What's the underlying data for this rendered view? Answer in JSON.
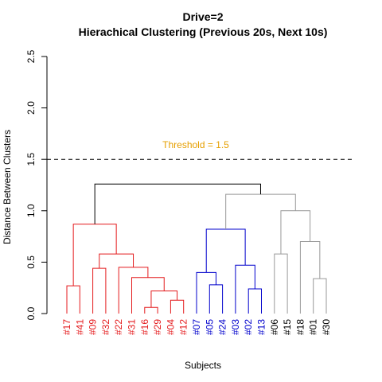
{
  "chart_data": {
    "type": "dendrogram",
    "title": "Drive=2",
    "subtitle": "Hierachical Clustering (Previous 20s, Next 10s)",
    "xlabel": "Subjects",
    "ylabel": "Distance Between Clusters",
    "ylim": [
      0,
      2.5
    ],
    "yticks": [
      "0.0",
      "0.5",
      "1.0",
      "1.5",
      "2.0",
      "2.5"
    ],
    "ytick_values": [
      0,
      0.5,
      1.0,
      1.5,
      2.0,
      2.5
    ],
    "threshold": {
      "value": 1.5,
      "label": "Threshold = 1.5",
      "color": "#E69F00",
      "style": "dashed"
    },
    "colors": {
      "cluster1": "#E41A1C",
      "cluster2": "#0000CC",
      "cluster3": "#999999",
      "root": "#000000"
    },
    "leaves": [
      {
        "label": "#17",
        "cluster": "cluster1"
      },
      {
        "label": "#41",
        "cluster": "cluster1"
      },
      {
        "label": "#09",
        "cluster": "cluster1"
      },
      {
        "label": "#32",
        "cluster": "cluster1"
      },
      {
        "label": "#22",
        "cluster": "cluster1"
      },
      {
        "label": "#31",
        "cluster": "cluster1"
      },
      {
        "label": "#16",
        "cluster": "cluster1"
      },
      {
        "label": "#29",
        "cluster": "cluster1"
      },
      {
        "label": "#04",
        "cluster": "cluster1"
      },
      {
        "label": "#12",
        "cluster": "cluster1"
      },
      {
        "label": "#07",
        "cluster": "cluster2"
      },
      {
        "label": "#05",
        "cluster": "cluster2"
      },
      {
        "label": "#24",
        "cluster": "cluster2"
      },
      {
        "label": "#03",
        "cluster": "cluster2"
      },
      {
        "label": "#02",
        "cluster": "cluster2"
      },
      {
        "label": "#13",
        "cluster": "cluster2"
      },
      {
        "label": "#06",
        "cluster": "root"
      },
      {
        "label": "#15",
        "cluster": "root"
      },
      {
        "label": "#18",
        "cluster": "root"
      },
      {
        "label": "#01",
        "cluster": "root"
      },
      {
        "label": "#30",
        "cluster": "root"
      }
    ],
    "merges": [
      {
        "a": "#17",
        "b": "#41",
        "height": 0.27,
        "cluster": "cluster1"
      },
      {
        "a": "#16",
        "b": "#29",
        "height": 0.06,
        "cluster": "cluster1"
      },
      {
        "a": "#04",
        "b": "#12",
        "height": 0.13,
        "cluster": "cluster1"
      },
      {
        "a": 1,
        "b": 2,
        "height": 0.22,
        "cluster": "cluster1"
      },
      {
        "a": "#31",
        "b": 3,
        "height": 0.35,
        "cluster": "cluster1"
      },
      {
        "a": "#22",
        "b": 4,
        "height": 0.45,
        "cluster": "cluster1"
      },
      {
        "a": "#09",
        "b": "#32",
        "height": 0.44,
        "cluster": "cluster1"
      },
      {
        "a": 6,
        "b": 5,
        "height": 0.58,
        "cluster": "cluster1"
      },
      {
        "a": 0,
        "b": 7,
        "height": 0.87,
        "cluster": "cluster1"
      },
      {
        "a": "#05",
        "b": "#24",
        "height": 0.28,
        "cluster": "cluster2"
      },
      {
        "a": "#07",
        "b": 9,
        "height": 0.4,
        "cluster": "cluster2"
      },
      {
        "a": "#02",
        "b": "#13",
        "height": 0.24,
        "cluster": "cluster2"
      },
      {
        "a": "#03",
        "b": 11,
        "height": 0.47,
        "cluster": "cluster2"
      },
      {
        "a": 10,
        "b": 12,
        "height": 0.82,
        "cluster": "cluster2"
      },
      {
        "a": "#06",
        "b": "#15",
        "height": 0.58,
        "cluster": "cluster3"
      },
      {
        "a": "#01",
        "b": "#30",
        "height": 0.34,
        "cluster": "cluster3"
      },
      {
        "a": "#18",
        "b": 15,
        "height": 0.7,
        "cluster": "cluster3"
      },
      {
        "a": 14,
        "b": 16,
        "height": 1.0,
        "cluster": "cluster3"
      },
      {
        "a": 13,
        "b": 17,
        "height": 1.16,
        "cluster": "cluster3"
      },
      {
        "a": 8,
        "b": 18,
        "height": 1.26,
        "cluster": "root"
      }
    ]
  }
}
